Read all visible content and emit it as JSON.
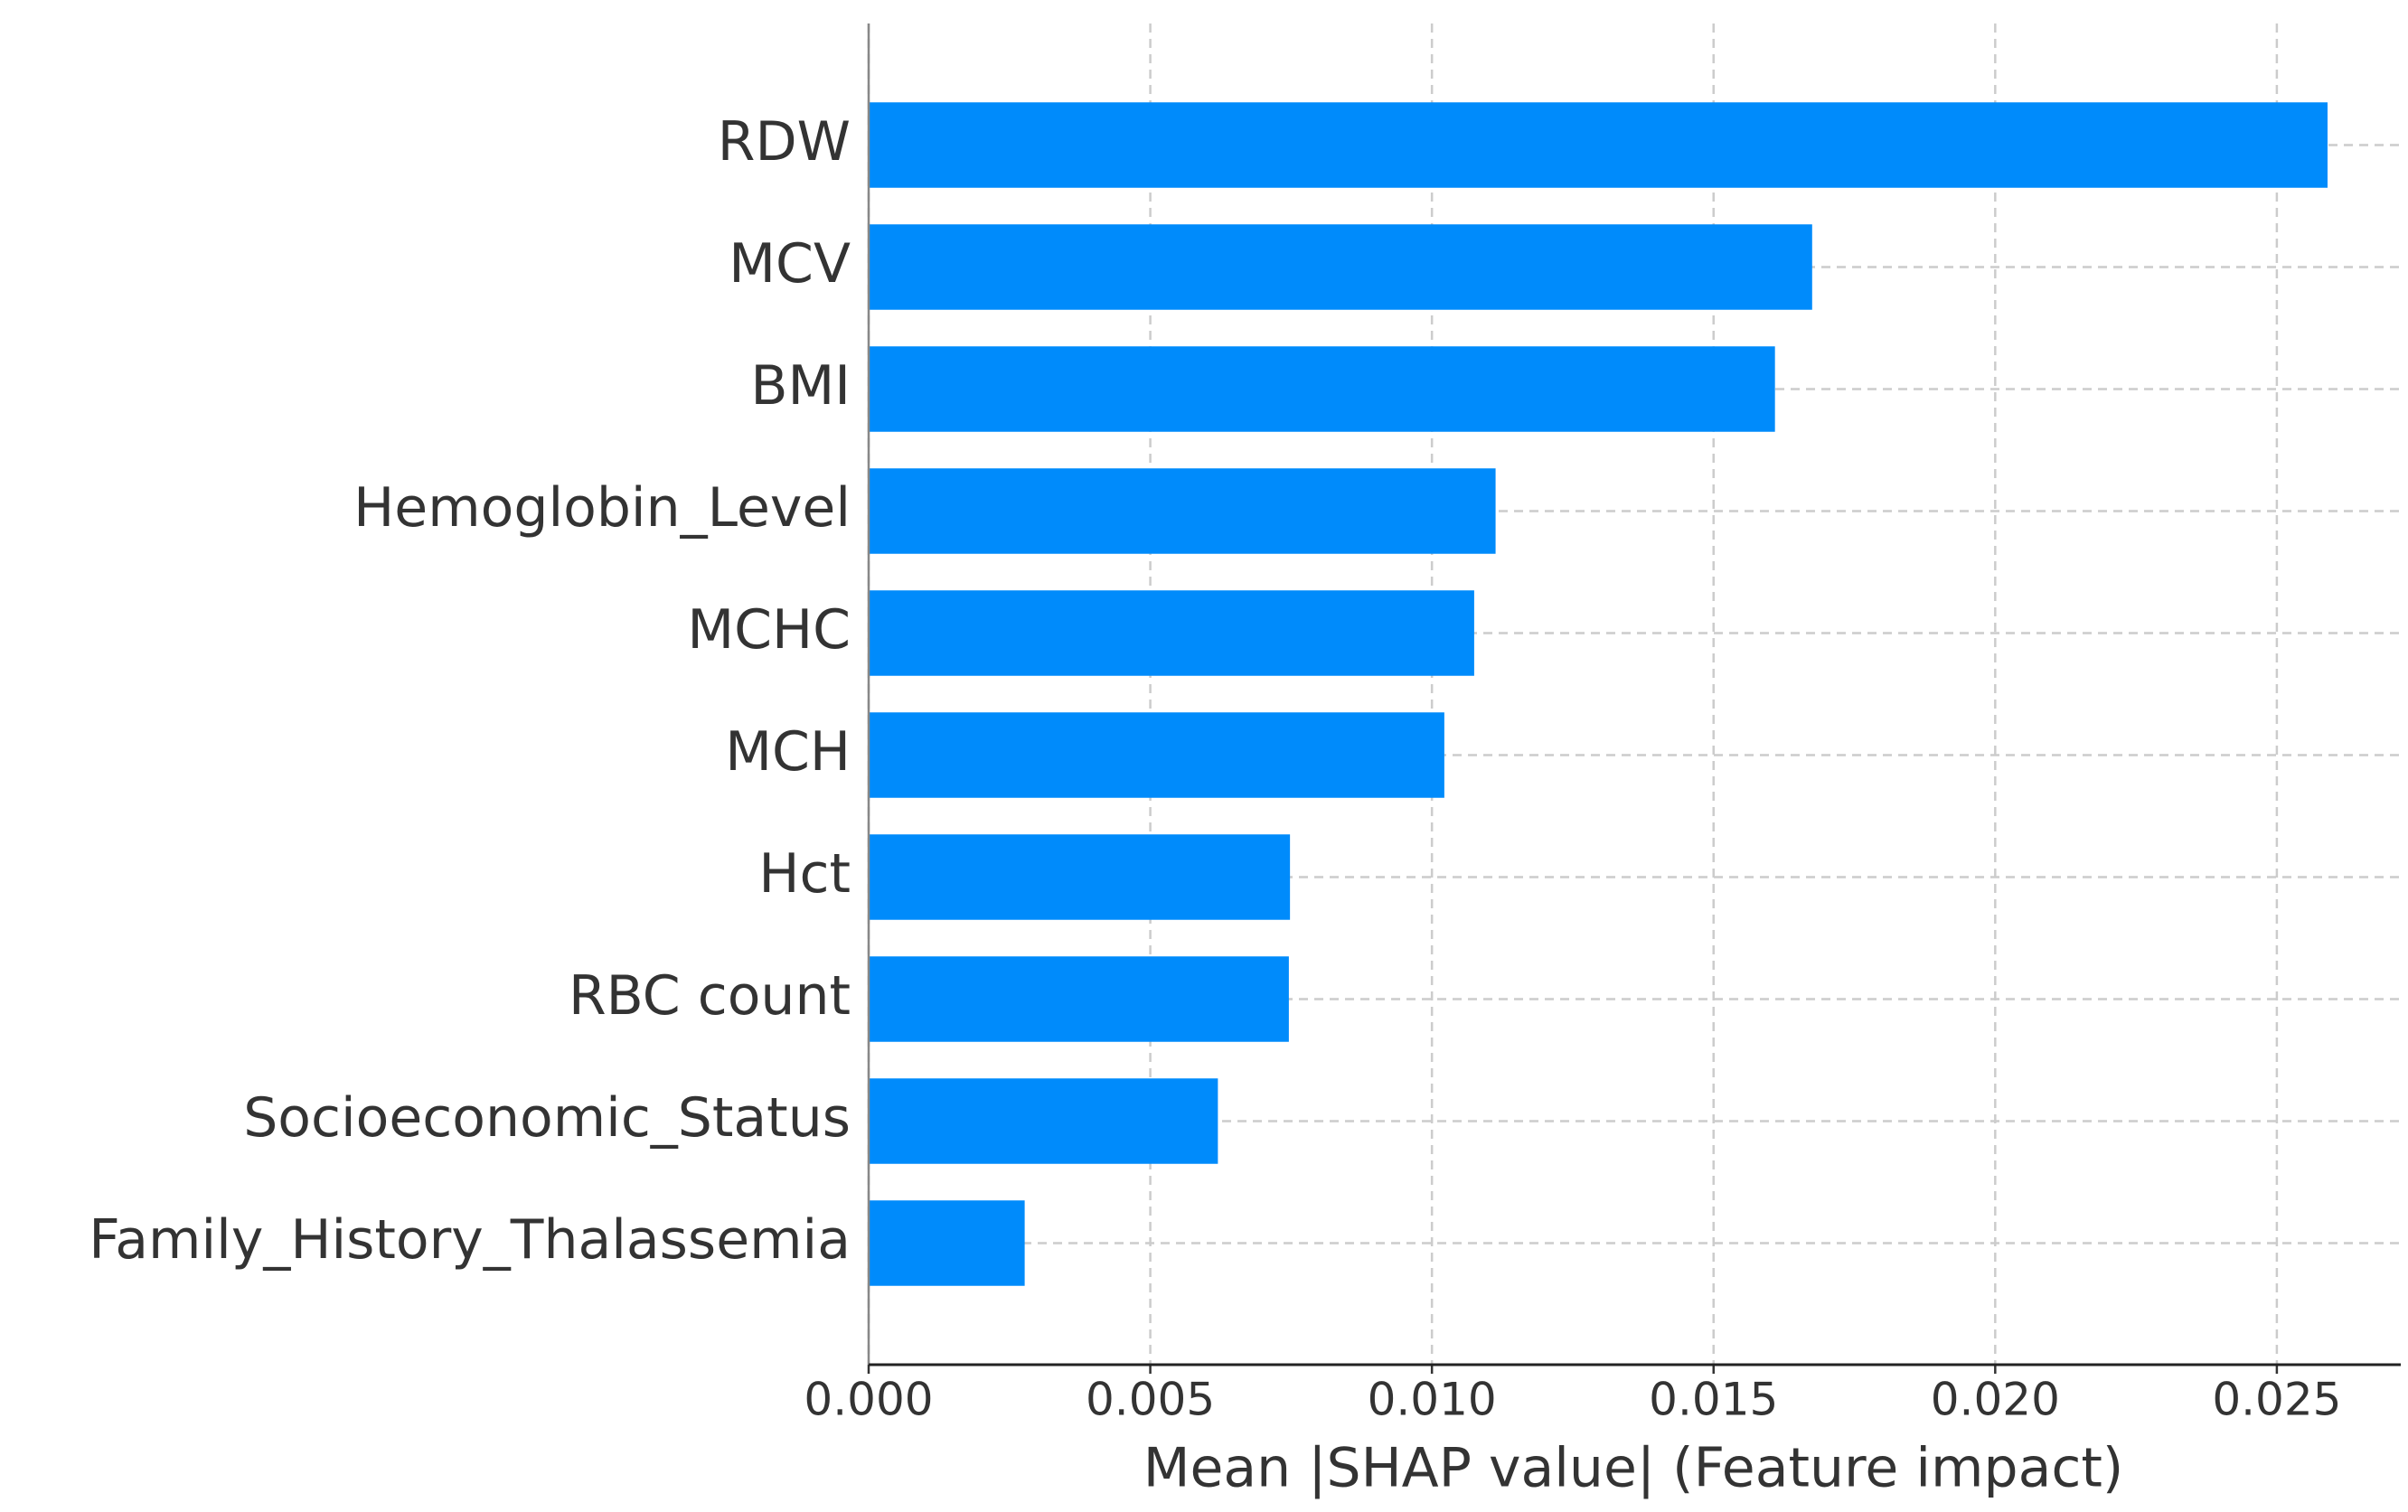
{
  "chart_data": {
    "type": "barh",
    "x_label": "Mean |SHAP value| (Feature impact)",
    "categories": [
      "RDW",
      "MCV",
      "BMI",
      "Hemoglobin_Level",
      "MCHC",
      "MCH",
      "Hct",
      "RBC count",
      "Socioeconomic_Status",
      "Family_History_Thalassemia"
    ],
    "values": [
      0.0259,
      0.01675,
      0.01609,
      0.01113,
      0.01075,
      0.01022,
      0.00748,
      0.00746,
      0.0062,
      0.00277
    ],
    "color": "#008bfb",
    "xlim": [
      0,
      0.0272
    ],
    "xticks": [
      {
        "value": 0,
        "label": "0.000"
      },
      {
        "value": 0.005,
        "label": "0.005"
      },
      {
        "value": 0.01,
        "label": "0.010"
      },
      {
        "value": 0.015,
        "label": "0.015"
      },
      {
        "value": 0.02,
        "label": "0.020"
      },
      {
        "value": 0.025,
        "label": "0.025"
      }
    ],
    "grid": true
  }
}
